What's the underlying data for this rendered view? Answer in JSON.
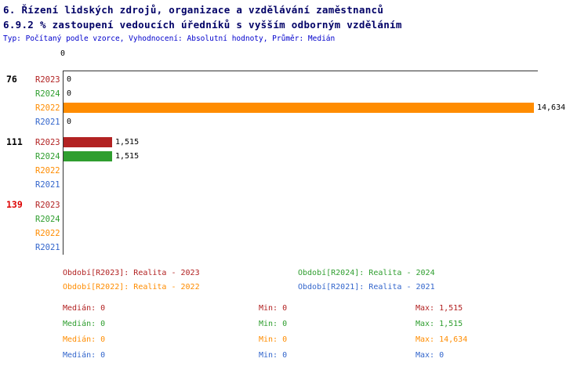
{
  "header": {
    "title_line1": "6. Řízení lidských zdrojů, organizace a vzdělávání zaměstnanců",
    "title_line2": "6.9.2 % zastoupení vedoucích úředníků s vyšším odborným vzděláním",
    "meta": "Typ: Počítaný podle vzorce, Vyhodnocení: Absolutní hodnoty, Průměr: Medián"
  },
  "colors": {
    "title": "#000066",
    "meta": "#0000cc",
    "axis": "#333333",
    "value_label": "#000000",
    "group_label_alert": "#dd0000",
    "R2023": "#b22222",
    "R2024": "#2f9e2f",
    "R2022": "#ff8c00",
    "R2021": "#3366cc"
  },
  "chart_data": {
    "type": "bar",
    "orientation": "horizontal",
    "origin_label": "0",
    "xlim": [
      0,
      14634
    ],
    "grid": false,
    "series_order": [
      "R2023",
      "R2024",
      "R2022",
      "R2021"
    ],
    "groups": [
      {
        "label": "76",
        "label_color": "#000000",
        "values": {
          "R2023": 0,
          "R2024": 0,
          "R2022": 14634,
          "R2021": 0
        },
        "value_labels": {
          "R2023": "0",
          "R2024": "0",
          "R2022": "14,634",
          "R2021": "0"
        }
      },
      {
        "label": "111",
        "label_color": "#000000",
        "values": {
          "R2023": 1515,
          "R2024": 1515,
          "R2022": 0,
          "R2021": 0
        },
        "value_labels": {
          "R2023": "1,515",
          "R2024": "1,515",
          "R2022": "",
          "R2021": ""
        }
      },
      {
        "label": "139",
        "label_color": "#dd0000",
        "values": {
          "R2023": 0,
          "R2024": 0,
          "R2022": 0,
          "R2021": 0
        },
        "value_labels": {
          "R2023": "",
          "R2024": "",
          "R2022": "",
          "R2021": ""
        }
      }
    ]
  },
  "legend": [
    {
      "series": "R2023",
      "label": "Období[R2023]: Realita - 2023"
    },
    {
      "series": "R2024",
      "label": "Období[R2024]: Realita - 2024"
    },
    {
      "series": "R2022",
      "label": "Období[R2022]: Realita - 2022"
    },
    {
      "series": "R2021",
      "label": "Období[R2021]: Realita - 2021"
    }
  ],
  "stats": [
    {
      "series": "R2023",
      "median": "Medián: 0",
      "min": "Min: 0",
      "max": "Max: 1,515"
    },
    {
      "series": "R2024",
      "median": "Medián: 0",
      "min": "Min: 0",
      "max": "Max: 1,515"
    },
    {
      "series": "R2022",
      "median": "Medián: 0",
      "min": "Min: 0",
      "max": "Max: 14,634"
    },
    {
      "series": "R2021",
      "median": "Medián: 0",
      "min": "Min: 0",
      "max": "Max: 0"
    }
  ]
}
